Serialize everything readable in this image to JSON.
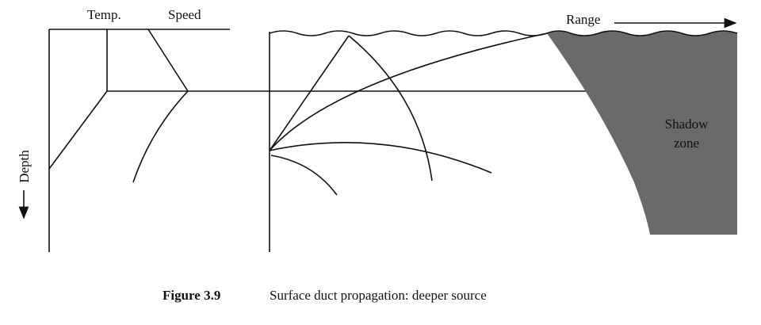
{
  "labels": {
    "temp": "Temp.",
    "speed": "Speed",
    "range": "Range",
    "depth": "Depth",
    "shadow_zone": [
      "Shadow",
      "zone"
    ]
  },
  "caption": {
    "number": "Figure 3.9",
    "text": "Surface duct propagation: deeper source"
  }
}
